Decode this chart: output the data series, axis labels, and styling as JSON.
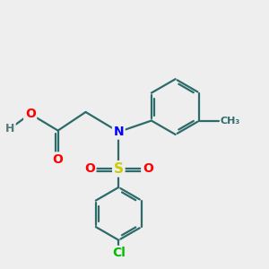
{
  "background_color": "#eeeeee",
  "bond_color": "#2d6b6b",
  "atom_colors": {
    "O": "#ff0000",
    "N": "#0000ff",
    "S": "#cccc00",
    "Cl": "#00bb00",
    "H": "#557777",
    "C": "#2d6b6b"
  },
  "bond_width": 1.6,
  "dbo": 0.1,
  "figsize": [
    3.0,
    3.0
  ],
  "dpi": 100
}
